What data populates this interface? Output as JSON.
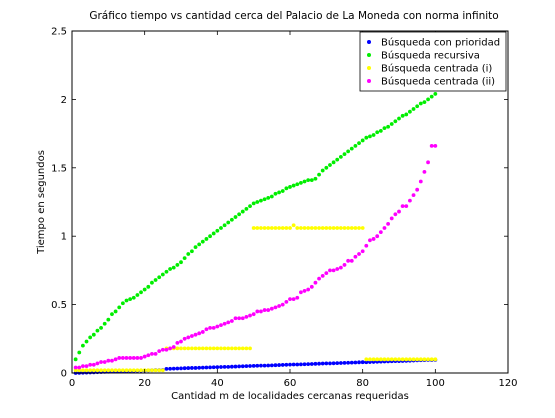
{
  "chart_data": {
    "type": "scatter",
    "title": "Gráfico tiempo vs cantidad cerca del Palacio de La Moneda con norma infinito",
    "xlabel": "Cantidad m de localidades cercanas requeridas",
    "ylabel": "Tiempo en segundos",
    "xlim": [
      0,
      120
    ],
    "ylim": [
      0,
      2.5
    ],
    "xticks": [
      "0",
      "20",
      "40",
      "60",
      "80",
      "100",
      "120"
    ],
    "yticks": [
      "0",
      "0.5",
      "1",
      "1.5",
      "2",
      "2.5"
    ],
    "grid": false,
    "legend_position": "top-right",
    "series": [
      {
        "name": "Búsqueda con prioridad",
        "color": "#0000ff",
        "x": [
          1,
          2,
          3,
          4,
          5,
          6,
          7,
          8,
          9,
          10,
          11,
          12,
          13,
          14,
          15,
          16,
          17,
          18,
          19,
          20,
          21,
          22,
          23,
          24,
          25,
          26,
          27,
          28,
          29,
          30,
          31,
          32,
          33,
          34,
          35,
          36,
          37,
          38,
          39,
          40,
          41,
          42,
          43,
          44,
          45,
          46,
          47,
          48,
          49,
          50,
          51,
          52,
          53,
          54,
          55,
          56,
          57,
          58,
          59,
          60,
          61,
          62,
          63,
          64,
          65,
          66,
          67,
          68,
          69,
          70,
          71,
          72,
          73,
          74,
          75,
          76,
          77,
          78,
          79,
          80,
          81,
          82,
          83,
          84,
          85,
          86,
          87,
          88,
          89,
          90,
          91,
          92,
          93,
          94,
          95,
          96,
          97,
          98,
          99,
          100
        ],
        "y": [
          0.0,
          0.001,
          0.002,
          0.003,
          0.004,
          0.005,
          0.006,
          0.007,
          0.008,
          0.009,
          0.01,
          0.011,
          0.012,
          0.012,
          0.013,
          0.014,
          0.015,
          0.016,
          0.017,
          0.018,
          0.019,
          0.02,
          0.021,
          0.021,
          0.022,
          0.03,
          0.031,
          0.032,
          0.033,
          0.034,
          0.035,
          0.036,
          0.037,
          0.037,
          0.038,
          0.039,
          0.04,
          0.041,
          0.042,
          0.043,
          0.044,
          0.045,
          0.045,
          0.046,
          0.047,
          0.048,
          0.049,
          0.05,
          0.051,
          0.052,
          0.053,
          0.054,
          0.054,
          0.055,
          0.056,
          0.057,
          0.058,
          0.059,
          0.06,
          0.061,
          0.062,
          0.062,
          0.063,
          0.064,
          0.065,
          0.066,
          0.067,
          0.068,
          0.069,
          0.07,
          0.07,
          0.071,
          0.072,
          0.073,
          0.074,
          0.075,
          0.076,
          0.077,
          0.078,
          0.079,
          0.079,
          0.08,
          0.081,
          0.082,
          0.083,
          0.084,
          0.085,
          0.086,
          0.087,
          0.087,
          0.088,
          0.089,
          0.09,
          0.091,
          0.092,
          0.093,
          0.094,
          0.095,
          0.095,
          0.096
        ]
      },
      {
        "name": "Búsqueda recursiva",
        "color": "#00ee00",
        "x": [
          1,
          2,
          3,
          4,
          5,
          6,
          7,
          8,
          9,
          10,
          11,
          12,
          13,
          14,
          15,
          16,
          17,
          18,
          19,
          20,
          21,
          22,
          23,
          24,
          25,
          26,
          27,
          28,
          29,
          30,
          31,
          32,
          33,
          34,
          35,
          36,
          37,
          38,
          39,
          40,
          41,
          42,
          43,
          44,
          45,
          46,
          47,
          48,
          49,
          50,
          51,
          52,
          53,
          54,
          55,
          56,
          57,
          58,
          59,
          60,
          61,
          62,
          63,
          64,
          65,
          66,
          67,
          68,
          69,
          70,
          71,
          72,
          73,
          74,
          75,
          76,
          77,
          78,
          79,
          80,
          81,
          82,
          83,
          84,
          85,
          86,
          87,
          88,
          89,
          90,
          91,
          92,
          93,
          94,
          95,
          96,
          97,
          98,
          99,
          100
        ],
        "y": [
          0.1,
          0.15,
          0.2,
          0.23,
          0.26,
          0.28,
          0.31,
          0.33,
          0.36,
          0.39,
          0.43,
          0.45,
          0.48,
          0.51,
          0.53,
          0.54,
          0.55,
          0.57,
          0.59,
          0.61,
          0.63,
          0.66,
          0.68,
          0.7,
          0.72,
          0.74,
          0.76,
          0.77,
          0.79,
          0.81,
          0.84,
          0.87,
          0.89,
          0.92,
          0.94,
          0.96,
          0.98,
          1.0,
          1.02,
          1.04,
          1.06,
          1.08,
          1.1,
          1.12,
          1.14,
          1.16,
          1.18,
          1.2,
          1.22,
          1.24,
          1.25,
          1.26,
          1.27,
          1.28,
          1.29,
          1.31,
          1.32,
          1.33,
          1.35,
          1.36,
          1.37,
          1.38,
          1.39,
          1.4,
          1.41,
          1.41,
          1.42,
          1.45,
          1.48,
          1.5,
          1.52,
          1.54,
          1.56,
          1.58,
          1.6,
          1.62,
          1.64,
          1.66,
          1.68,
          1.7,
          1.72,
          1.73,
          1.74,
          1.76,
          1.77,
          1.79,
          1.8,
          1.82,
          1.84,
          1.86,
          1.88,
          1.89,
          1.91,
          1.93,
          1.95,
          1.97,
          1.98,
          2.0,
          2.02,
          2.04
        ]
      },
      {
        "name": "Búsqueda centrada (i)",
        "color": "#ffff00",
        "x": [
          1,
          2,
          3,
          4,
          5,
          6,
          7,
          8,
          9,
          10,
          11,
          12,
          13,
          14,
          15,
          16,
          17,
          18,
          19,
          20,
          21,
          22,
          23,
          24,
          25,
          26,
          27,
          28,
          29,
          30,
          31,
          32,
          33,
          34,
          35,
          36,
          37,
          38,
          39,
          40,
          41,
          42,
          43,
          44,
          45,
          46,
          47,
          48,
          49,
          50,
          51,
          52,
          53,
          54,
          55,
          56,
          57,
          58,
          59,
          60,
          61,
          62,
          63,
          64,
          65,
          66,
          67,
          68,
          69,
          70,
          71,
          72,
          73,
          74,
          75,
          76,
          77,
          78,
          79,
          80,
          81,
          82,
          83,
          84,
          85,
          86,
          87,
          88,
          89,
          90,
          91,
          92,
          93,
          94,
          95,
          96,
          97,
          98,
          99,
          100
        ],
        "y": [
          0.02,
          0.02,
          0.02,
          0.02,
          0.02,
          0.02,
          0.02,
          0.02,
          0.02,
          0.02,
          0.02,
          0.02,
          0.02,
          0.02,
          0.02,
          0.02,
          0.02,
          0.02,
          0.02,
          0.02,
          0.02,
          0.02,
          0.02,
          0.02,
          0.02,
          0.18,
          0.18,
          0.18,
          0.18,
          0.18,
          0.18,
          0.18,
          0.18,
          0.18,
          0.18,
          0.18,
          0.18,
          0.18,
          0.18,
          0.18,
          0.18,
          0.18,
          0.18,
          0.18,
          0.18,
          0.18,
          0.18,
          0.18,
          0.18,
          1.06,
          1.06,
          1.06,
          1.06,
          1.06,
          1.06,
          1.06,
          1.06,
          1.06,
          1.06,
          1.06,
          1.08,
          1.06,
          1.06,
          1.06,
          1.06,
          1.06,
          1.06,
          1.06,
          1.06,
          1.06,
          1.06,
          1.06,
          1.06,
          1.06,
          1.06,
          1.06,
          1.06,
          1.06,
          1.06,
          1.06,
          0.1,
          0.1,
          0.1,
          0.1,
          0.1,
          0.1,
          0.1,
          0.1,
          0.1,
          0.1,
          0.1,
          0.1,
          0.1,
          0.1,
          0.1,
          0.1,
          0.1,
          0.1,
          0.1,
          0.1
        ]
      },
      {
        "name": "Búsqueda centrada (ii)",
        "color": "#ff00ff",
        "x": [
          1,
          2,
          3,
          4,
          5,
          6,
          7,
          8,
          9,
          10,
          11,
          12,
          13,
          14,
          15,
          16,
          17,
          18,
          19,
          20,
          21,
          22,
          23,
          24,
          25,
          26,
          27,
          28,
          29,
          30,
          31,
          32,
          33,
          34,
          35,
          36,
          37,
          38,
          39,
          40,
          41,
          42,
          43,
          44,
          45,
          46,
          47,
          48,
          49,
          50,
          51,
          52,
          53,
          54,
          55,
          56,
          57,
          58,
          59,
          60,
          61,
          62,
          63,
          64,
          65,
          66,
          67,
          68,
          69,
          70,
          71,
          72,
          73,
          74,
          75,
          76,
          77,
          78,
          79,
          80,
          81,
          82,
          83,
          84,
          85,
          86,
          87,
          88,
          89,
          90,
          91,
          92,
          93,
          94,
          95,
          96,
          97,
          98,
          99,
          100
        ],
        "y": [
          0.04,
          0.04,
          0.05,
          0.05,
          0.06,
          0.06,
          0.07,
          0.08,
          0.08,
          0.09,
          0.09,
          0.1,
          0.11,
          0.11,
          0.11,
          0.11,
          0.11,
          0.11,
          0.11,
          0.12,
          0.13,
          0.14,
          0.14,
          0.16,
          0.17,
          0.17,
          0.18,
          0.19,
          0.22,
          0.23,
          0.25,
          0.26,
          0.27,
          0.28,
          0.29,
          0.3,
          0.32,
          0.33,
          0.33,
          0.34,
          0.35,
          0.36,
          0.37,
          0.38,
          0.4,
          0.4,
          0.4,
          0.41,
          0.42,
          0.43,
          0.45,
          0.45,
          0.46,
          0.46,
          0.47,
          0.48,
          0.49,
          0.5,
          0.52,
          0.54,
          0.54,
          0.55,
          0.59,
          0.6,
          0.61,
          0.63,
          0.66,
          0.69,
          0.71,
          0.73,
          0.75,
          0.75,
          0.76,
          0.77,
          0.79,
          0.82,
          0.82,
          0.85,
          0.87,
          0.89,
          0.93,
          0.97,
          0.98,
          1.0,
          1.03,
          1.06,
          1.09,
          1.13,
          1.16,
          1.18,
          1.22,
          1.22,
          1.26,
          1.3,
          1.34,
          1.4,
          1.47,
          1.54,
          1.66,
          1.66
        ]
      }
    ]
  }
}
